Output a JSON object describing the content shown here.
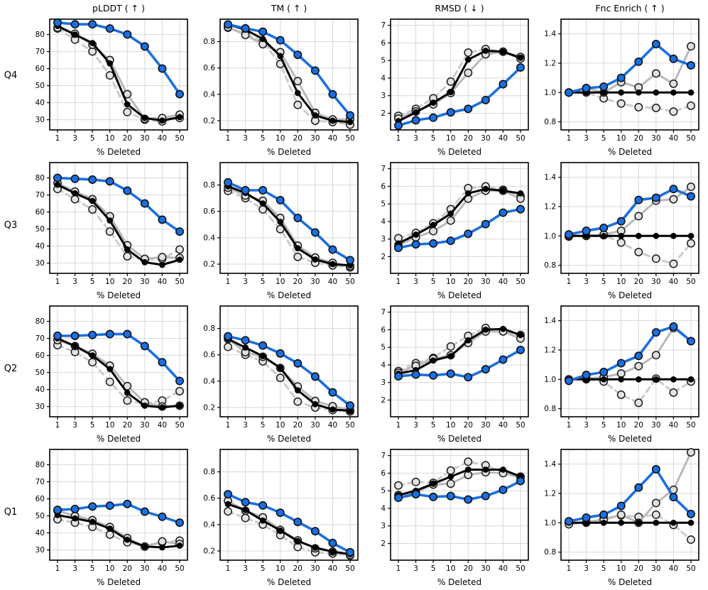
{
  "chart_data": {
    "type": "line",
    "xlabel": "% Deleted",
    "x_categories": [
      "1",
      "3",
      "5",
      "10",
      "20",
      "30",
      "40",
      "50"
    ],
    "rows": [
      "Q4",
      "Q3",
      "Q2",
      "Q1"
    ],
    "grid": true,
    "legend": "none",
    "style": {
      "grid_color": "#d8d8d8",
      "spine_color": "#000000",
      "background": "#ffffff",
      "accent_blue": "#1a6fe0"
    },
    "series_styles": [
      {
        "key": "gray_dashed",
        "label": "gray-dashed-baseline",
        "color": "#cbcbcb",
        "dash": true,
        "width": 3,
        "r": 5.2,
        "marker_fill": "#e4e4e4",
        "marker_edge": "#1a1a1a"
      },
      {
        "key": "gray_solid",
        "label": "gray-solid-baseline",
        "color": "#b9b9b9",
        "dash": false,
        "width": 3,
        "r": 5.2,
        "marker_fill": "#e0e0e0",
        "marker_edge": "#1a1a1a"
      },
      {
        "key": "black",
        "label": "black-baseline",
        "color": "#000000",
        "dash": false,
        "width": 3,
        "r": 3.6,
        "marker_fill": "#000000",
        "marker_edge": "#000000"
      },
      {
        "key": "blue",
        "label": "blue-method",
        "color": "#1a6fe0",
        "dash": false,
        "width": 3.6,
        "r": 5.2,
        "marker_fill": "#1a6fe0",
        "marker_edge": "#0a0a0a"
      }
    ],
    "columns": [
      {
        "title": "pLDDT ( ↑ )",
        "yticks": [
          30,
          40,
          50,
          60,
          70,
          80
        ],
        "ylim": [
          24,
          89
        ],
        "ytick_decimals": 0
      },
      {
        "title": "TM ( ↑ )",
        "yticks": [
          0.2,
          0.4,
          0.6,
          0.8
        ],
        "ylim": [
          0.13,
          0.97
        ],
        "ytick_decimals": 1
      },
      {
        "title": "RMSD ( ↓ )",
        "yticks": [
          2,
          3,
          4,
          5,
          6,
          7
        ],
        "ylim": [
          1.05,
          7.35
        ],
        "ytick_decimals": 0
      },
      {
        "title": "Fnc Enrich ( ↑ )",
        "yticks": [
          0.8,
          1.0,
          1.2,
          1.4
        ],
        "ylim": [
          0.745,
          1.5
        ],
        "ytick_decimals": 1
      }
    ],
    "cells": [
      [
        {
          "gray_dashed": [
            83.5,
            77,
            70,
            56,
            34.5,
            30,
            29,
            31
          ],
          "gray_solid": [
            84,
            80.5,
            74,
            65,
            45,
            30.5,
            31,
            33
          ],
          "black": [
            85,
            80,
            75,
            63,
            39,
            31,
            29.5,
            31.5
          ],
          "blue": [
            87,
            86,
            86,
            83.5,
            80,
            73,
            60,
            45
          ]
        },
        {
          "gray_dashed": [
            0.905,
            0.86,
            0.8,
            0.63,
            0.32,
            0.2,
            0.19,
            0.17
          ],
          "gray_solid": [
            0.91,
            0.85,
            0.78,
            0.72,
            0.5,
            0.26,
            0.21,
            0.21
          ],
          "black": [
            0.93,
            0.89,
            0.82,
            0.69,
            0.41,
            0.24,
            0.2,
            0.19
          ],
          "blue": [
            0.93,
            0.9,
            0.875,
            0.81,
            0.7,
            0.58,
            0.4,
            0.24
          ]
        },
        {
          "gray_dashed": [
            1.85,
            2.25,
            2.85,
            3.8,
            5.45,
            5.65,
            5.5,
            5.2
          ],
          "gray_solid": [
            1.7,
            2.1,
            2.5,
            3.15,
            4.3,
            5.35,
            5.5,
            5.1
          ],
          "black": [
            1.55,
            2.05,
            2.6,
            3.2,
            5.05,
            5.55,
            5.5,
            5.15
          ],
          "blue": [
            1.3,
            1.6,
            1.75,
            2.05,
            2.25,
            2.75,
            3.65,
            4.6
          ]
        },
        {
          "gray_dashed": [
            1.0,
            1.0,
            0.96,
            0.925,
            0.9,
            0.895,
            0.87,
            0.91
          ],
          "gray_solid": [
            1.0,
            1.03,
            1.0,
            1.07,
            1.035,
            1.13,
            1.06,
            1.315
          ],
          "black": [
            1,
            1,
            1,
            1,
            1,
            1,
            1,
            1
          ],
          "blue": [
            1.0,
            1.03,
            1.04,
            1.1,
            1.21,
            1.33,
            1.23,
            1.185
          ]
        }
      ],
      [
        {
          "gray_dashed": [
            73.5,
            67.5,
            61.5,
            48.5,
            34,
            32,
            32.5,
            38
          ],
          "gray_solid": [
            77,
            72,
            67.5,
            57.5,
            40.5,
            32.5,
            33.5,
            33
          ],
          "black": [
            76,
            71,
            66.5,
            55,
            38,
            30.5,
            29,
            32
          ],
          "blue": [
            80,
            79.5,
            79,
            78,
            72.5,
            65,
            55.5,
            48.5
          ]
        },
        {
          "gray_dashed": [
            0.755,
            0.7,
            0.615,
            0.465,
            0.255,
            0.21,
            0.19,
            0.175
          ],
          "gray_solid": [
            0.78,
            0.72,
            0.68,
            0.55,
            0.34,
            0.25,
            0.21,
            0.185
          ],
          "black": [
            0.79,
            0.74,
            0.66,
            0.52,
            0.32,
            0.235,
            0.2,
            0.19
          ],
          "blue": [
            0.82,
            0.76,
            0.76,
            0.685,
            0.55,
            0.44,
            0.31,
            0.23
          ]
        },
        {
          "gray_dashed": [
            3.05,
            3.35,
            3.9,
            4.7,
            5.9,
            6.0,
            5.8,
            5.45
          ],
          "gray_solid": [
            2.65,
            3.1,
            3.45,
            4.05,
            5.3,
            5.75,
            5.75,
            5.3
          ],
          "black": [
            2.75,
            3.25,
            3.8,
            4.45,
            5.6,
            5.85,
            5.75,
            5.6
          ],
          "blue": [
            2.5,
            2.7,
            2.75,
            2.9,
            3.3,
            3.85,
            4.5,
            4.7
          ]
        },
        {
          "gray_dashed": [
            0.995,
            1.0,
            1.005,
            0.955,
            0.89,
            0.845,
            0.81,
            0.95
          ],
          "gray_solid": [
            1.0,
            1.0,
            1.01,
            1.035,
            1.135,
            1.24,
            1.25,
            1.335
          ],
          "black": [
            1,
            1,
            1,
            1,
            1,
            1,
            1,
            1
          ],
          "blue": [
            1.01,
            1.035,
            1.055,
            1.1,
            1.245,
            1.26,
            1.32,
            1.27
          ]
        }
      ],
      [
        {
          "gray_dashed": [
            66,
            62,
            56,
            44.5,
            33.5,
            31.5,
            33.5,
            39
          ],
          "gray_solid": [
            69,
            65.5,
            61,
            54,
            42,
            32.5,
            30,
            30.5
          ],
          "black": [
            70,
            65.5,
            60,
            52,
            38,
            30.5,
            29.5,
            30.5
          ],
          "blue": [
            71.5,
            71.5,
            72,
            72.5,
            72.5,
            65.5,
            56,
            45
          ]
        },
        {
          "gray_dashed": [
            0.66,
            0.6,
            0.55,
            0.425,
            0.245,
            0.2,
            0.18,
            0.17
          ],
          "gray_solid": [
            0.72,
            0.62,
            0.585,
            0.5,
            0.36,
            0.25,
            0.21,
            0.18
          ],
          "black": [
            0.72,
            0.655,
            0.59,
            0.5,
            0.33,
            0.225,
            0.185,
            0.175
          ],
          "blue": [
            0.74,
            0.71,
            0.67,
            0.61,
            0.535,
            0.435,
            0.315,
            0.215
          ]
        },
        {
          "gray_dashed": [
            3.65,
            4.1,
            4.4,
            5.05,
            5.65,
            6.1,
            5.95,
            5.7
          ],
          "gray_solid": [
            3.55,
            3.95,
            4.35,
            4.55,
            5.25,
            5.9,
            5.9,
            5.5
          ],
          "black": [
            3.5,
            3.7,
            4.25,
            4.5,
            5.4,
            6.0,
            6.05,
            5.7
          ],
          "blue": [
            3.35,
            3.45,
            3.4,
            3.5,
            3.3,
            3.75,
            4.3,
            4.85
          ]
        },
        {
          "gray_dashed": [
            1.0,
            1.0,
            0.985,
            0.895,
            0.84,
            1.005,
            0.91,
            0.985
          ],
          "gray_solid": [
            1.0,
            1.005,
            1.015,
            1.04,
            1.09,
            1.165,
            1.35,
            1.26
          ],
          "black": [
            1,
            1,
            1,
            1,
            1,
            1,
            1,
            1
          ],
          "blue": [
            0.99,
            1.03,
            1.05,
            1.11,
            1.16,
            1.32,
            1.36,
            1.26
          ]
        }
      ],
      [
        {
          "gray_dashed": [
            48,
            46,
            43.5,
            39,
            34.5,
            32,
            34.5,
            35.5
          ],
          "gray_solid": [
            53,
            50,
            47.5,
            43.5,
            37,
            32,
            35,
            33.5
          ],
          "black": [
            50.5,
            48.5,
            46.5,
            42.5,
            36,
            32,
            31.5,
            32.5
          ],
          "blue": [
            53.5,
            54,
            55.5,
            56,
            57,
            52.5,
            49.5,
            46
          ]
        },
        {
          "gray_dashed": [
            0.5,
            0.45,
            0.4,
            0.32,
            0.23,
            0.19,
            0.18,
            0.165
          ],
          "gray_solid": [
            0.58,
            0.505,
            0.455,
            0.36,
            0.28,
            0.22,
            0.195,
            0.17
          ],
          "black": [
            0.555,
            0.51,
            0.43,
            0.355,
            0.275,
            0.225,
            0.195,
            0.175
          ],
          "blue": [
            0.63,
            0.57,
            0.545,
            0.49,
            0.42,
            0.35,
            0.26,
            0.19
          ]
        },
        {
          "gray_dashed": [
            5.3,
            5.5,
            5.45,
            6.15,
            6.65,
            6.45,
            6.05,
            5.8
          ],
          "gray_solid": [
            4.75,
            4.9,
            5.35,
            5.4,
            5.9,
            6.05,
            6.0,
            5.75
          ],
          "black": [
            4.75,
            5.0,
            5.4,
            5.8,
            6.2,
            6.2,
            6.2,
            5.8
          ],
          "blue": [
            4.6,
            4.8,
            4.65,
            4.7,
            4.5,
            4.7,
            5.05,
            5.55
          ]
        },
        {
          "gray_dashed": [
            1.0,
            1.0,
            1.03,
            1.05,
            1.04,
            1.055,
            0.985,
            0.885
          ],
          "gray_solid": [
            0.99,
            1.005,
            1.02,
            1.055,
            1.0,
            1.135,
            1.225,
            1.48
          ],
          "black": [
            1,
            1,
            1,
            1,
            1,
            1,
            1,
            1
          ],
          "blue": [
            1.01,
            1.035,
            1.055,
            1.115,
            1.24,
            1.365,
            1.175,
            1.06
          ]
        }
      ]
    ]
  }
}
